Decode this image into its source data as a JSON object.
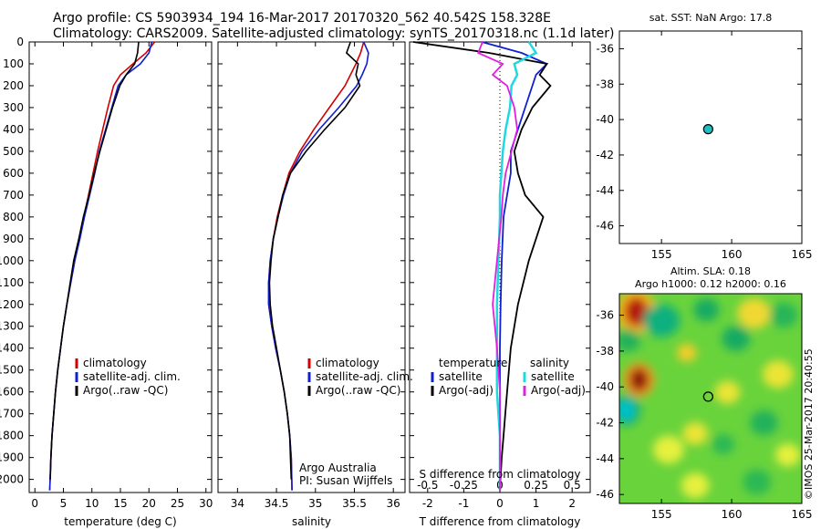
{
  "header": {
    "title_line1": "Argo profile: CS 5903934_194 16-Mar-2017 20170320_562 40.542S 158.328E",
    "title_line2": "Climatology: CARS2009. Satellite-adjusted climatology: synTS_20170318.nc (1.1d later)"
  },
  "footer": {
    "stamp": "©IMOS 25-Mar-2017 20:40:55",
    "credit_line1": "Argo Australia",
    "credit_line2": "PI: Susan Wijffels"
  },
  "colors": {
    "climatology": "#d40000",
    "satellite": "#1020d0",
    "argo": "#000000",
    "sal_satellite": "#20d8e0",
    "sal_argo": "#e020e0"
  },
  "chart_data": [
    {
      "type": "line",
      "xlabel": "temperature (deg C)",
      "ylabel": "",
      "xlim": [
        -1,
        31
      ],
      "ylim": [
        2060,
        0
      ],
      "xticks": [
        0,
        5,
        10,
        15,
        20,
        25,
        30
      ],
      "yticks": [
        0,
        100,
        200,
        300,
        400,
        500,
        600,
        700,
        800,
        900,
        1000,
        1100,
        1200,
        1300,
        1400,
        1500,
        1600,
        1700,
        1800,
        1900,
        2000
      ],
      "legend": [
        "climatology",
        "satellite-adj. clim.",
        "Argo(..raw -QC)"
      ],
      "series": [
        {
          "name": "climatology",
          "x": [
            21.0,
            19.5,
            17.2,
            15.0,
            13.8,
            12.8,
            11.9,
            11.0,
            10.2,
            9.4,
            8.6,
            7.8,
            7.0,
            6.3,
            5.6,
            5.0,
            4.5,
            4.0,
            3.6,
            3.3,
            3.0,
            2.8,
            2.6
          ],
          "y": [
            0,
            50,
            100,
            150,
            200,
            300,
            400,
            500,
            600,
            700,
            800,
            900,
            1000,
            1100,
            1200,
            1300,
            1400,
            1500,
            1600,
            1700,
            1800,
            1900,
            2050
          ]
        },
        {
          "name": "satellite-adj. clim.",
          "x": [
            20.5,
            20.0,
            18.5,
            16.0,
            14.6,
            13.5,
            12.4,
            11.3,
            10.5,
            9.6,
            8.7,
            7.9,
            7.0,
            6.3,
            5.6,
            5.0,
            4.5,
            4.0,
            3.6,
            3.3,
            3.0,
            2.8,
            2.6
          ],
          "y": [
            0,
            50,
            100,
            150,
            200,
            300,
            400,
            500,
            600,
            700,
            800,
            900,
            1000,
            1100,
            1200,
            1300,
            1400,
            1500,
            1600,
            1700,
            1800,
            1900,
            2050
          ]
        },
        {
          "name": "Argo(..raw -QC)",
          "x": [
            18.2,
            18.0,
            17.5,
            16.0,
            14.9,
            13.6,
            12.5,
            11.4,
            10.4,
            9.5,
            8.5,
            7.7,
            6.8,
            6.2,
            5.6,
            5.0,
            4.5,
            4.0,
            3.6,
            3.3,
            3.0,
            2.8,
            2.7
          ],
          "y": [
            0,
            50,
            100,
            150,
            200,
            300,
            400,
            500,
            600,
            700,
            800,
            900,
            1000,
            1100,
            1200,
            1300,
            1400,
            1500,
            1600,
            1700,
            1800,
            1900,
            2000
          ]
        }
      ]
    },
    {
      "type": "line",
      "xlabel": "salinity",
      "ylabel": "",
      "xlim": [
        33.75,
        36.15
      ],
      "ylim": [
        2060,
        0
      ],
      "xticks": [
        34,
        34.5,
        35,
        35.5,
        36
      ],
      "legend": [
        "climatology",
        "satellite-adj. clim.",
        "Argo(..raw -QC)"
      ],
      "series": [
        {
          "name": "climatology",
          "x": [
            35.62,
            35.58,
            35.52,
            35.45,
            35.38,
            35.18,
            34.98,
            34.8,
            34.66,
            34.58,
            34.51,
            34.46,
            34.42,
            34.4,
            34.4,
            34.44,
            34.49,
            34.55,
            34.6,
            34.64,
            34.67,
            34.69,
            34.7
          ],
          "y": [
            0,
            50,
            100,
            150,
            200,
            300,
            400,
            500,
            600,
            700,
            800,
            900,
            1000,
            1100,
            1200,
            1300,
            1400,
            1500,
            1600,
            1700,
            1800,
            1900,
            2050
          ]
        },
        {
          "name": "satellite-adj. clim.",
          "x": [
            35.62,
            35.68,
            35.66,
            35.6,
            35.53,
            35.3,
            35.05,
            34.83,
            34.68,
            34.59,
            34.52,
            34.46,
            34.42,
            34.4,
            34.4,
            34.44,
            34.49,
            34.55,
            34.6,
            34.64,
            34.67,
            34.69,
            34.7
          ],
          "y": [
            0,
            50,
            100,
            150,
            200,
            300,
            400,
            500,
            600,
            700,
            800,
            900,
            1000,
            1100,
            1200,
            1300,
            1400,
            1500,
            1600,
            1700,
            1800,
            1900,
            2050
          ]
        },
        {
          "name": "Argo(..raw -QC)",
          "x": [
            35.45,
            35.4,
            35.55,
            35.52,
            35.57,
            35.38,
            35.12,
            34.88,
            34.68,
            34.58,
            34.52,
            34.46,
            34.43,
            34.41,
            34.42,
            34.45,
            34.5,
            34.55,
            34.6,
            34.64,
            34.67,
            34.68,
            34.69
          ],
          "y": [
            0,
            50,
            100,
            150,
            200,
            300,
            400,
            500,
            600,
            700,
            800,
            900,
            1000,
            1100,
            1200,
            1300,
            1400,
            1500,
            1600,
            1700,
            1800,
            1900,
            2000
          ]
        }
      ]
    },
    {
      "type": "line",
      "xlabel": "T difference from climatology",
      "xlabel_top": "S difference from climatology",
      "ylabel": "",
      "xlim": [
        -2.5,
        2.5
      ],
      "ylim": [
        2060,
        0
      ],
      "xticks": [
        -2,
        -1,
        0,
        1,
        2
      ],
      "x2ticks": [
        -0.5,
        -0.25,
        0,
        0.25,
        0.5
      ],
      "x2ticklabels": [
        "-0.5",
        "-0.25",
        "0",
        "0.25",
        "0.5"
      ],
      "legend_groups": [
        {
          "title": "temperature",
          "items": [
            "satellite",
            "Argo(-adj)"
          ]
        },
        {
          "title": "salinity",
          "items": [
            "satellite",
            "Argo(-adj)"
          ]
        }
      ],
      "series": [
        {
          "name": "temperature satellite",
          "x": [
            -0.5,
            0.6,
            1.3,
            1.0,
            0.9,
            0.7,
            0.5,
            0.3,
            0.3,
            0.2,
            0.1,
            0.05,
            0.02,
            0.0,
            0.0,
            0.0,
            0.0,
            0.0,
            0.0
          ],
          "y": [
            0,
            50,
            100,
            150,
            200,
            300,
            400,
            500,
            600,
            700,
            800,
            1000,
            1200,
            1400,
            1600,
            1700,
            1800,
            1900,
            2050
          ]
        },
        {
          "name": "temperature Argo(-adj)",
          "x": [
            -2.4,
            -0.3,
            1.3,
            1.1,
            1.4,
            0.9,
            0.6,
            0.4,
            0.5,
            0.7,
            1.2,
            0.8,
            0.5,
            0.3,
            0.2,
            0.15,
            0.1,
            0.05,
            0.0
          ],
          "y": [
            0,
            50,
            100,
            150,
            200,
            300,
            400,
            500,
            600,
            700,
            800,
            1000,
            1200,
            1400,
            1600,
            1700,
            1800,
            1900,
            2050
          ]
        },
        {
          "name": "salinity satellite",
          "x": [
            0.2,
            0.25,
            0.1,
            0.12,
            0.08,
            0.07,
            0.04,
            0.02,
            0.01,
            0.0,
            0.0,
            -0.01,
            -0.02,
            -0.02,
            -0.02,
            -0.01,
            0.0,
            0.0,
            0.0
          ],
          "y": [
            0,
            50,
            100,
            150,
            200,
            300,
            400,
            500,
            600,
            700,
            800,
            1000,
            1200,
            1400,
            1600,
            1700,
            1800,
            1900,
            2050
          ]
        },
        {
          "name": "salinity Argo(-adj)",
          "x": [
            -0.12,
            -0.15,
            0.02,
            -0.05,
            0.05,
            0.1,
            0.12,
            0.08,
            0.04,
            0.02,
            0.01,
            -0.02,
            -0.05,
            -0.02,
            0.0,
            0.0,
            0.0,
            0.0,
            0.0
          ],
          "y": [
            0,
            50,
            100,
            150,
            200,
            300,
            400,
            500,
            600,
            700,
            800,
            1000,
            1200,
            1400,
            1600,
            1700,
            1800,
            1900,
            2050
          ]
        }
      ]
    },
    {
      "type": "scatter",
      "title": "sat. SST: NaN Argo: 17.8",
      "xlim": [
        152,
        165
      ],
      "ylim": [
        -47,
        -35
      ],
      "xticks": [
        155,
        160,
        165
      ],
      "yticks": [
        -36,
        -38,
        -40,
        -42,
        -44,
        -46
      ],
      "points": [
        {
          "x": 158.328,
          "y": -40.542
        }
      ]
    },
    {
      "type": "heatmap",
      "title_line1": "Altim. SLA: 0.18",
      "title_line2": "Argo h1000: 0.12 h2000: 0.16",
      "xlim": [
        152,
        165
      ],
      "ylim": [
        -46.5,
        -34.8
      ],
      "xticks": [
        155,
        160,
        165
      ],
      "yticks": [
        -36,
        -38,
        -40,
        -42,
        -44,
        -46
      ],
      "points": [
        {
          "x": 158.328,
          "y": -40.542
        }
      ],
      "field_blobs": [
        {
          "x": 153.2,
          "y": -35.8,
          "r": 1.4,
          "v": 0.9
        },
        {
          "x": 153.4,
          "y": -39.6,
          "r": 1.1,
          "v": 1.0
        },
        {
          "x": 155.0,
          "y": -36.3,
          "r": 1.3,
          "v": -0.6
        },
        {
          "x": 152.5,
          "y": -41.3,
          "r": 1.0,
          "v": -0.9
        },
        {
          "x": 152.6,
          "y": -37.4,
          "r": 0.9,
          "v": -0.4
        },
        {
          "x": 158.2,
          "y": -35.7,
          "r": 0.9,
          "v": -0.5
        },
        {
          "x": 160.3,
          "y": -37.3,
          "r": 1.0,
          "v": -0.5
        },
        {
          "x": 161.6,
          "y": -35.9,
          "r": 1.2,
          "v": 0.4
        },
        {
          "x": 163.7,
          "y": -36.0,
          "r": 1.0,
          "v": -0.35
        },
        {
          "x": 163.3,
          "y": -39.3,
          "r": 1.1,
          "v": 0.35
        },
        {
          "x": 162.3,
          "y": -42.0,
          "r": 1.0,
          "v": -0.4
        },
        {
          "x": 155.5,
          "y": -43.5,
          "r": 1.1,
          "v": 0.3
        },
        {
          "x": 157.4,
          "y": -42.6,
          "r": 0.9,
          "v": 0.35
        },
        {
          "x": 159.7,
          "y": -40.3,
          "r": 0.9,
          "v": 0.35
        },
        {
          "x": 157.4,
          "y": -45.5,
          "r": 1.0,
          "v": 0.3
        },
        {
          "x": 156.8,
          "y": -38.1,
          "r": 0.7,
          "v": 0.45
        },
        {
          "x": 161.8,
          "y": -45.3,
          "r": 1.0,
          "v": -0.3
        },
        {
          "x": 164.0,
          "y": -43.8,
          "r": 0.9,
          "v": 0.3
        },
        {
          "x": 159.4,
          "y": -43.2,
          "r": 0.8,
          "v": -0.3
        }
      ]
    }
  ]
}
